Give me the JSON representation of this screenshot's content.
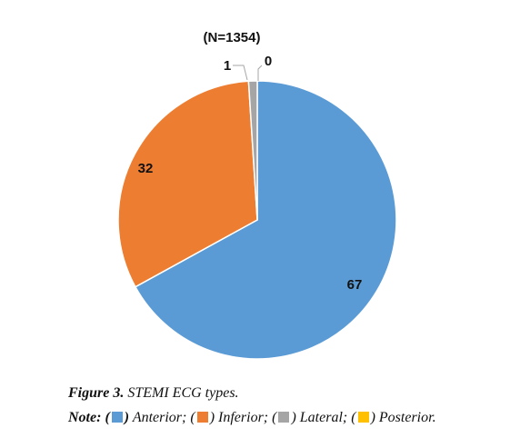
{
  "chart_data": {
    "type": "pie",
    "title": "(N=1354)",
    "slices": [
      {
        "name": "Anterior",
        "value": 67,
        "label": "67",
        "color": "#5b9bd5"
      },
      {
        "name": "Inferior",
        "value": 32,
        "label": "32",
        "color": "#ed7d31"
      },
      {
        "name": "Lateral",
        "value": 1,
        "label": "1",
        "color": "#a5a5a5"
      },
      {
        "name": "Posterior",
        "value": 0,
        "label": "0",
        "color": "#ffc000"
      }
    ],
    "start_angle_deg": 0,
    "direction": "clockwise"
  },
  "caption": {
    "figure_label": "Figure 3.",
    "text": "STEMI ECG types."
  },
  "note": {
    "lead": "Note:",
    "items": [
      {
        "open": "(",
        "close": ")",
        "label": "Anterior;"
      },
      {
        "open": "(",
        "close": ")",
        "label": "Inferior;"
      },
      {
        "open": "(",
        "close": ")",
        "label": "Lateral;"
      },
      {
        "open": "(",
        "close": ")",
        "label": "Posterior."
      }
    ]
  }
}
